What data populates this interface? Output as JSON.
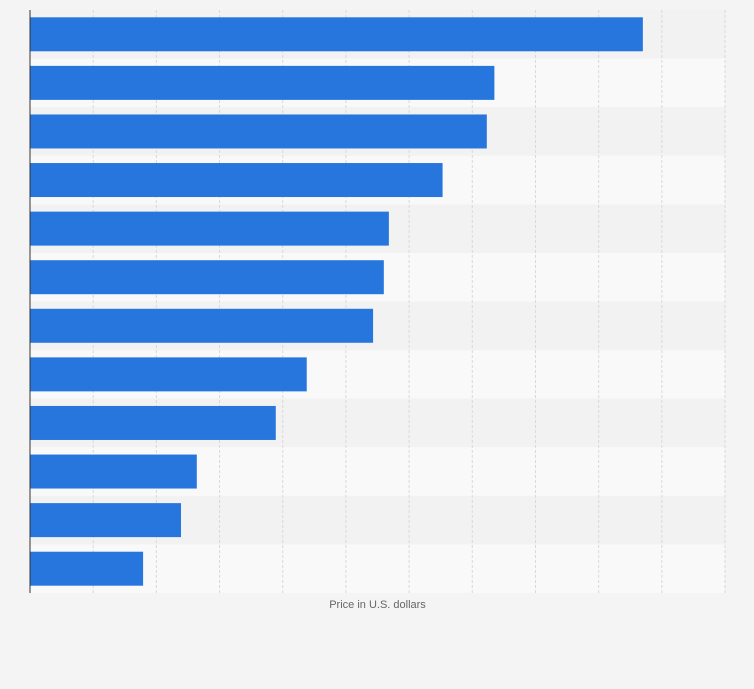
{
  "chart_data": {
    "type": "bar",
    "orientation": "horizontal",
    "title": "",
    "xlabel": "Price in U.S. dollars",
    "ylabel": "",
    "categories": [
      "",
      "",
      "",
      "",
      "",
      "",
      "",
      "",
      "",
      "",
      "",
      ""
    ],
    "values": [
      9.7,
      7.35,
      7.23,
      6.53,
      5.68,
      5.6,
      5.43,
      4.38,
      3.89,
      2.64,
      2.39,
      1.79
    ],
    "xlim": [
      0,
      11
    ],
    "grid": true,
    "bar_color": "#2776dd",
    "band_colors": [
      "#f2f2f3",
      "#f9f9fa"
    ],
    "grid_color": "#d9d9d9",
    "axis_color": "#333333"
  }
}
